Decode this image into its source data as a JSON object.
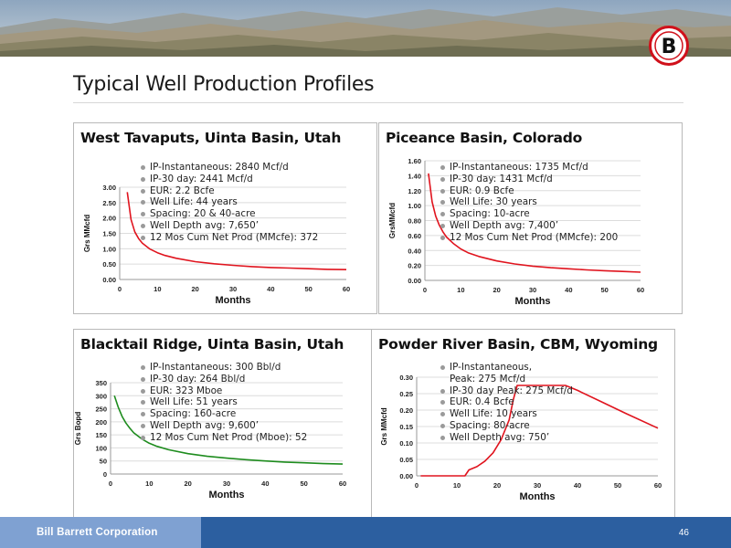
{
  "slide": {
    "title": "Typical Well Production Profiles",
    "company": "Bill Barrett Corporation",
    "page_number": "46",
    "logo_letter": "B",
    "colors": {
      "red": "#e0141e",
      "green": "#1e8c1e",
      "footer_blue": "#2c5fa0",
      "footer_light": "#7fa1d2"
    }
  },
  "chart_data": [
    {
      "type": "line",
      "title": "West Tavaputs, Uinta Basin, Utah",
      "xlabel": "Months",
      "ylabel": "Grs MMcfd",
      "xlim": [
        0,
        60
      ],
      "ylim": [
        0,
        3
      ],
      "xticks": [
        "0",
        "10",
        "20",
        "30",
        "40",
        "50",
        "60"
      ],
      "yticks": [
        "0.00",
        "0.50",
        "1.00",
        "1.50",
        "2.00",
        "2.50",
        "3.00"
      ],
      "grid": true,
      "series": [
        {
          "color": "#e0141e",
          "x": [
            2,
            3,
            4,
            5,
            6,
            8,
            10,
            12,
            15,
            20,
            25,
            30,
            35,
            40,
            45,
            50,
            55,
            60
          ],
          "y": [
            2.84,
            1.95,
            1.55,
            1.33,
            1.18,
            0.99,
            0.87,
            0.78,
            0.69,
            0.58,
            0.51,
            0.46,
            0.42,
            0.39,
            0.37,
            0.35,
            0.33,
            0.32
          ]
        }
      ],
      "bullets": [
        "IP-Instantaneous: 2840 Mcf/d",
        "IP-30 day: 2441 Mcf/d",
        "EUR: 2.2 Bcfe",
        "Well Life: 44 years",
        "Spacing: 20 & 40-acre",
        "Well Depth avg: 7,650’",
        "12 Mos Cum Net Prod (MMcfe): 372"
      ]
    },
    {
      "type": "line",
      "title": "Piceance Basin, Colorado",
      "xlabel": "Months",
      "ylabel": "GrsMMcfd",
      "xlim": [
        0,
        60
      ],
      "ylim": [
        0,
        1.6
      ],
      "xticks": [
        "0",
        "10",
        "20",
        "30",
        "40",
        "50",
        "60"
      ],
      "yticks": [
        "0.00",
        "0.20",
        "0.40",
        "0.60",
        "0.80",
        "1.00",
        "1.20",
        "1.40",
        "1.60"
      ],
      "grid": true,
      "series": [
        {
          "color": "#e0141e",
          "x": [
            1,
            2,
            3,
            4,
            5,
            6,
            8,
            10,
            12,
            15,
            20,
            25,
            30,
            35,
            40,
            45,
            50,
            55,
            60
          ],
          "y": [
            1.43,
            1.05,
            0.86,
            0.74,
            0.65,
            0.58,
            0.49,
            0.42,
            0.37,
            0.32,
            0.26,
            0.22,
            0.19,
            0.17,
            0.155,
            0.14,
            0.13,
            0.12,
            0.11
          ]
        }
      ],
      "bullets": [
        "IP-Instantaneous: 1735 Mcf/d",
        "IP-30 day: 1431 Mcf/d",
        "EUR: 0.9 Bcfe",
        "Well Life: 30 years",
        "Spacing: 10-acre",
        "Well Depth avg: 7,400’",
        "12 Mos Cum Net Prod (MMcfe): 200"
      ]
    },
    {
      "type": "line",
      "title": "Blacktail Ridge, Uinta Basin, Utah",
      "xlabel": "Months",
      "ylabel": "Grs Bopd",
      "xlim": [
        0,
        60
      ],
      "ylim": [
        0,
        350
      ],
      "xticks": [
        "0",
        "10",
        "20",
        "30",
        "40",
        "50",
        "60"
      ],
      "yticks": [
        "0",
        "50",
        "100",
        "150",
        "200",
        "250",
        "300",
        "350"
      ],
      "grid": true,
      "series": [
        {
          "color": "#1e8c1e",
          "x": [
            1,
            2,
            3,
            4,
            5,
            6,
            8,
            10,
            12,
            15,
            20,
            25,
            30,
            35,
            40,
            45,
            50,
            55,
            60
          ],
          "y": [
            300,
            255,
            220,
            195,
            175,
            158,
            135,
            118,
            106,
            93,
            78,
            68,
            61,
            55,
            50,
            46,
            43,
            40,
            38
          ]
        }
      ],
      "bullets": [
        "IP-Instantaneous: 300 Bbl/d",
        "IP-30 day: 264 Bbl/d",
        "EUR: 323 Mboe",
        "Well Life: 51 years",
        "Spacing: 160-acre",
        "Well Depth avg: 9,600’",
        "12 Mos Cum Net Prod (Mboe): 52"
      ]
    },
    {
      "type": "line",
      "title": "Powder River Basin, CBM, Wyoming",
      "xlabel": "Months",
      "ylabel": "Grs MMcfd",
      "xlim": [
        0,
        60
      ],
      "ylim": [
        0,
        0.3
      ],
      "xticks": [
        "0",
        "10",
        "20",
        "30",
        "40",
        "50",
        "60"
      ],
      "yticks": [
        "0.00",
        "0.05",
        "0.10",
        "0.15",
        "0.20",
        "0.25",
        "0.30"
      ],
      "grid": true,
      "series": [
        {
          "color": "#e0141e",
          "x": [
            1,
            12,
            13,
            15,
            17,
            19,
            21,
            23,
            24,
            25,
            37,
            40,
            46,
            52,
            60
          ],
          "y": [
            0,
            0,
            0.018,
            0.028,
            0.045,
            0.07,
            0.11,
            0.17,
            0.23,
            0.275,
            0.275,
            0.26,
            0.225,
            0.19,
            0.145
          ]
        }
      ],
      "bullets": [
        "IP-Instantaneous,",
        "Peak: 275 Mcf/d",
        "IP-30 day Peak: 275 Mcf/d",
        "EUR: 0.4 Bcfe",
        "Well Life: 10 years",
        "Spacing: 80-acre",
        "Well Depth avg: 750’"
      ],
      "continuation_bullets": [
        1
      ]
    }
  ]
}
